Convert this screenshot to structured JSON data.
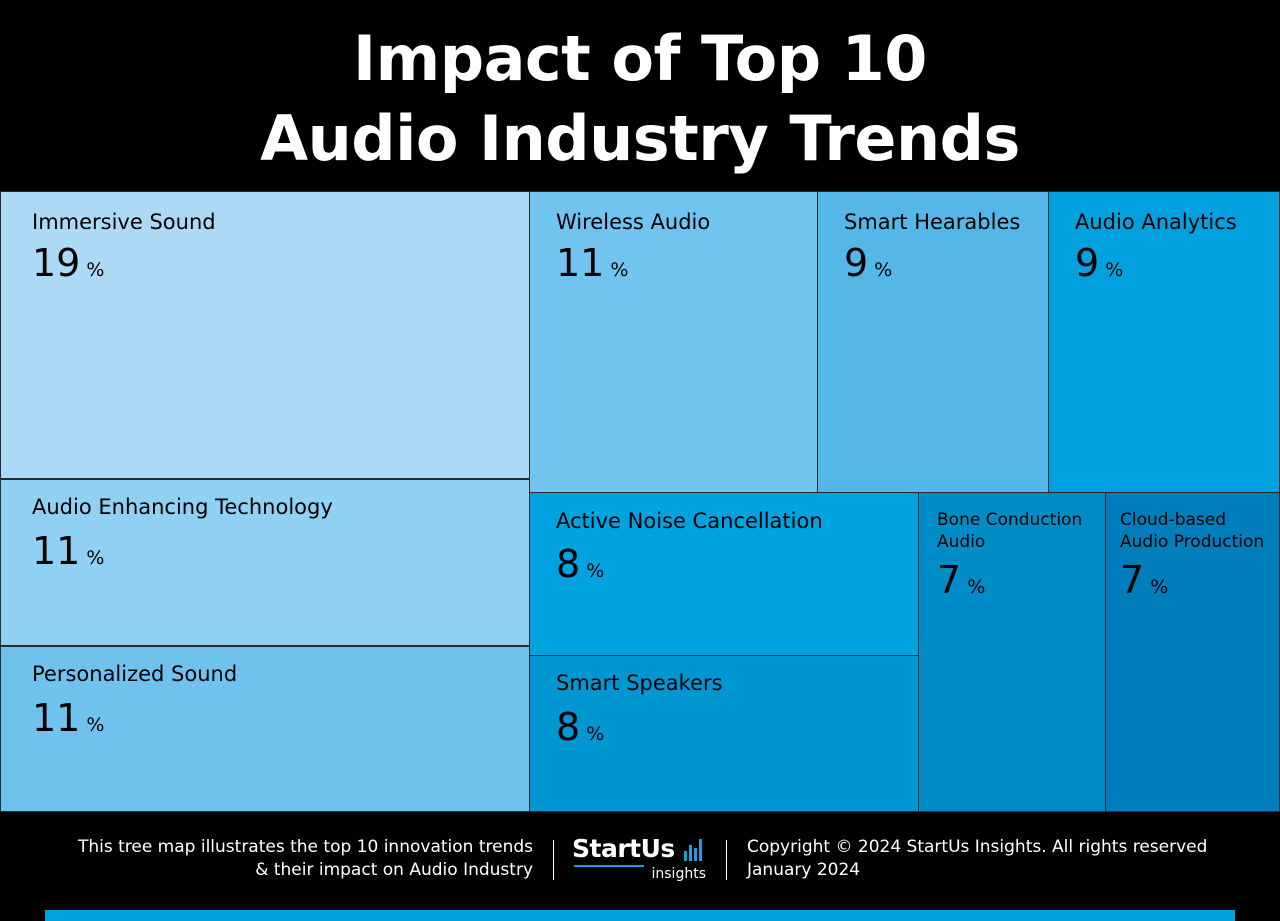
{
  "title": {
    "line1": "Impact of Top 10",
    "line2": "Audio Industry Trends"
  },
  "chart_data": {
    "type": "treemap",
    "title": "Impact of Top 10 Audio Industry Trends",
    "unit": "%",
    "items": [
      {
        "name": "Immersive Sound",
        "value": 19,
        "color": "#abd9f6"
      },
      {
        "name": "Audio Enhancing Technology",
        "value": 11,
        "color": "#8fd0f3"
      },
      {
        "name": "Personalized Sound",
        "value": 11,
        "color": "#70c2ee"
      },
      {
        "name": "Wireless Audio",
        "value": 11,
        "color": "#71c4ef"
      },
      {
        "name": "Smart Hearables",
        "value": 9,
        "color": "#55b7e8"
      },
      {
        "name": "Audio Analytics",
        "value": 9,
        "color": "#00a1de"
      },
      {
        "name": "Active Noise Cancellation",
        "value": 8,
        "color": "#00a2df"
      },
      {
        "name": "Smart Speakers",
        "value": 8,
        "color": "#0096d2"
      },
      {
        "name": "Bone Conduction Audio",
        "value": 7,
        "color": "#008dc7"
      },
      {
        "name": "Cloud-based Audio Production",
        "value": 7,
        "color": "#007ebb"
      }
    ]
  },
  "footer": {
    "description_line1": "This tree map illustrates the top 10 innovation trends",
    "description_line2": "& their impact on Audio Industry",
    "logo_main": "StartUs",
    "logo_sub": "insights",
    "copyright": "Copyright © 2024 StartUs Insights. All rights reserved",
    "date": "January 2024",
    "bar_color": "#00a3e0"
  }
}
